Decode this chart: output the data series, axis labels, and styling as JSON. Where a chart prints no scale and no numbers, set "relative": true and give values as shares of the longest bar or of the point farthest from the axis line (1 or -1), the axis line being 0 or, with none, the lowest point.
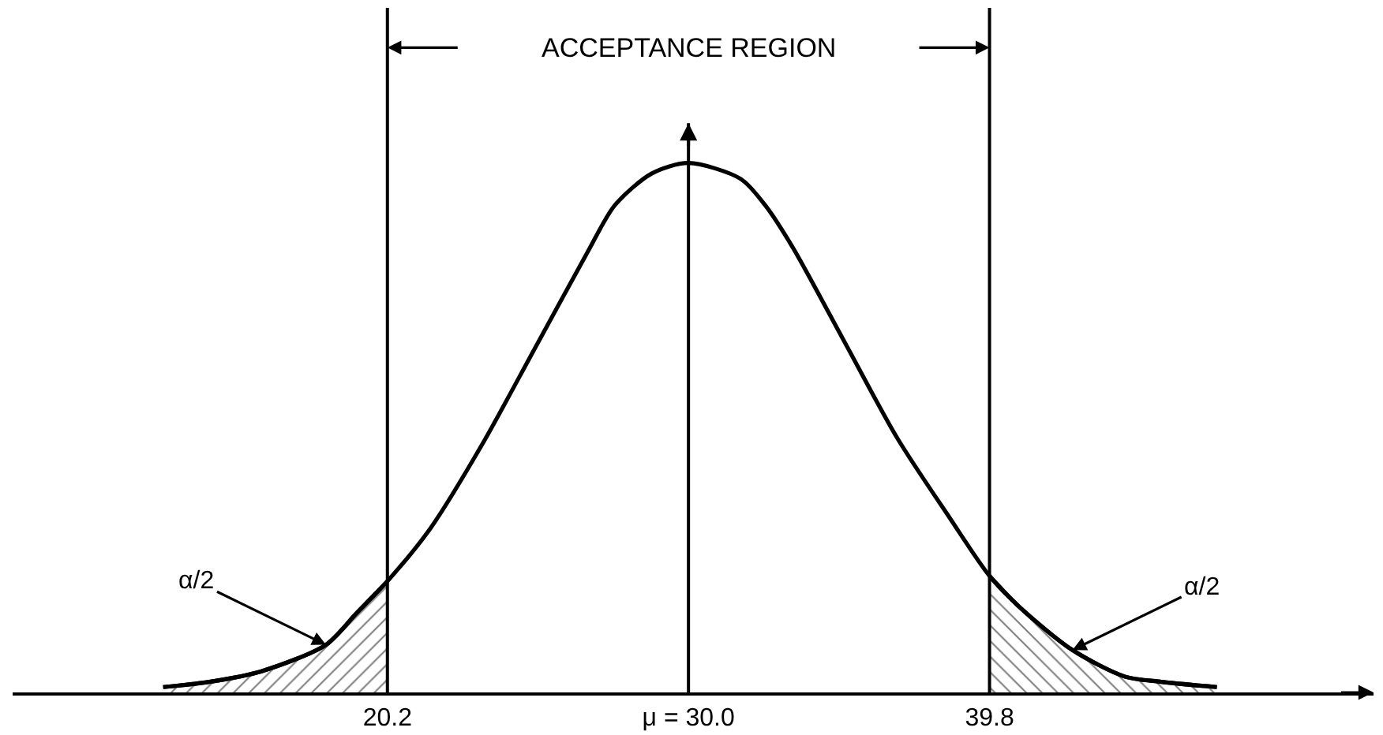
{
  "chart_data": {
    "type": "line",
    "relative": true,
    "xlim": [
      8,
      52.3
    ],
    "xticks": [
      20.2,
      {
        "value": 30.0,
        "label": "μ = 30.0"
      },
      39.8
    ],
    "tick_labels": "x",
    "series": [
      {
        "color": "#000000",
        "x": [
          12.9,
          14.4,
          16.1,
          18.2,
          19.2,
          20.2,
          21.6,
          23.3,
          25.0,
          26.7,
          27.6,
          28.8,
          30.0,
          31.7,
          32.5,
          33.4,
          35.1,
          36.8,
          38.5,
          39.8,
          40.8,
          42.5,
          44.2,
          45.4,
          47.2
        ],
        "values": [
          0.01,
          0.02,
          0.04,
          0.09,
          0.15,
          0.21,
          0.31,
          0.47,
          0.65,
          0.83,
          0.92,
          0.98,
          1,
          0.97,
          0.92,
          0.84,
          0.66,
          0.48,
          0.33,
          0.22,
          0.16,
          0.08,
          0.03,
          0.02,
          0.01
        ]
      },
      {
        "type": "area",
        "color": "#000000",
        "x": [
          12.9,
          14.4,
          16.1,
          18.2,
          19.2,
          20.2
        ],
        "values": [
          0.01,
          0.02,
          0.04,
          0.09,
          0.15,
          0.21
        ]
      },
      {
        "type": "area",
        "color": "#000000",
        "x": [
          39.8,
          40.8,
          42.5,
          44.2,
          45.4,
          47.2
        ],
        "values": [
          0.22,
          0.16,
          0.08,
          0.03,
          0.02,
          0.01
        ]
      }
    ],
    "ref_lines": [
      {
        "axis": "x",
        "value": 20.2
      },
      {
        "axis": "x",
        "value": 30.0
      },
      {
        "axis": "x",
        "value": 39.8
      }
    ],
    "annotations": [
      "ACCEPTANCE REGION",
      {
        "text": "α/2",
        "x": 18.2,
        "y": 0.09
      },
      {
        "text": "α/2",
        "x": 42.5,
        "y": 0.08
      }
    ]
  }
}
